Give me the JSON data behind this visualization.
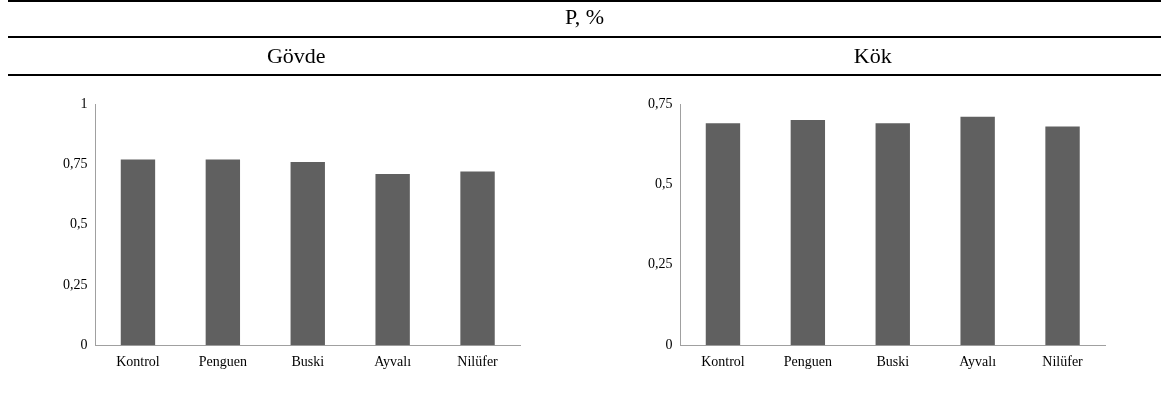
{
  "chart_data": [
    {
      "type": "bar",
      "subtitle": "Gövde",
      "categories": [
        "Kontrol",
        "Penguen",
        "Buski",
        "Ayvalı",
        "Nilüfer"
      ],
      "values": [
        0.77,
        0.77,
        0.76,
        0.71,
        0.72
      ],
      "color": "#606060",
      "ylim": [
        0,
        1
      ],
      "yticks": [
        {
          "value": 0,
          "label": "0"
        },
        {
          "value": 0.25,
          "label": "0,25"
        },
        {
          "value": 0.5,
          "label": "0,5"
        },
        {
          "value": 0.75,
          "label": "0,75"
        },
        {
          "value": 1,
          "label": "1"
        }
      ],
      "grid": false,
      "legend": false
    },
    {
      "type": "bar",
      "title": "P,  %",
      "subtitle": "Kök",
      "categories": [
        "Kontrol",
        "Penguen",
        "Buski",
        "Ayvalı",
        "Nilüfer"
      ],
      "values": [
        0.69,
        0.7,
        0.69,
        0.71,
        0.68
      ],
      "color": "#606060",
      "ylim": [
        0,
        0.75
      ],
      "yticks": [
        {
          "value": 0,
          "label": "0"
        },
        {
          "value": 0.25,
          "label": "0,25"
        },
        {
          "value": 0.5,
          "label": "0,5"
        },
        {
          "value": 0.75,
          "label": "0,75"
        }
      ],
      "grid": false,
      "legend": false
    }
  ]
}
